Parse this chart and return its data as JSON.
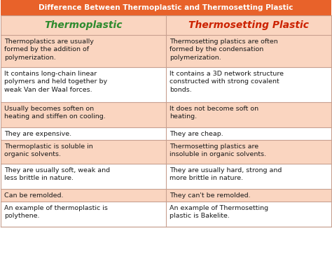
{
  "title": "Difference Between Thermoplastic and Thermosetting Plastic",
  "title_bg": "#E8622A",
  "title_color": "#FFFFFF",
  "header_left": "Thermoplastic",
  "header_right": "Thermosetting Plastic",
  "header_left_color": "#2E8B2E",
  "header_right_color": "#CC2200",
  "header_bg": "#FAD5C0",
  "row_bg_odd": "#FFFFFF",
  "row_bg_even": "#FAD5C0",
  "border_color": "#C8A090",
  "text_color": "#1A1A1A",
  "rows": [
    [
      "Thermoplastics are usually\nformed by the addition of\npolymerization.",
      "Thermosetting plastics are often\nformed by the condensation\npolymerization."
    ],
    [
      "It contains long-chain linear\npolymers and held together by\nweak Van der Waal forces.",
      "It contains a 3D network structure\nconstructed with strong covalent\nbonds."
    ],
    [
      "Usually becomes soften on\nheating and stiffen on cooling.",
      "It does not become soft on\nheating."
    ],
    [
      "They are expensive.",
      "They are cheap."
    ],
    [
      "Thermoplastic is soluble in\norganic solvents.",
      "Thermosetting plastics are\ninsoluble in organic solvents."
    ],
    [
      "They are usually soft, weak and\nless brittle in nature.",
      "They are usually hard, strong and\nmore brittle in nature."
    ],
    [
      "Can be remolded.",
      "They can't be remolded."
    ],
    [
      "An example of thermoplastic is\npolythene.",
      "An example of Thermosetting\nplastic is Bakelite."
    ]
  ]
}
